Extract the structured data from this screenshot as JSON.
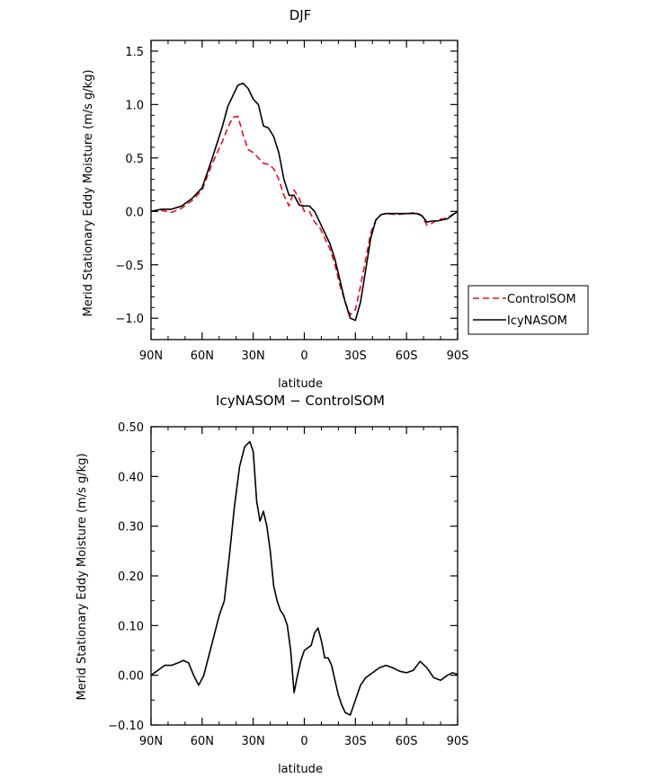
{
  "chart_data": [
    {
      "type": "line",
      "title": "DJF",
      "xlabel": "latitude",
      "ylabel": "Merid Stationary Eddy Moisture (m/s g/kg)",
      "xlim": [
        90,
        -90
      ],
      "ylim": [
        -1.2,
        1.6
      ],
      "x_ticks": [
        90,
        60,
        30,
        0,
        -30,
        -60,
        -90
      ],
      "x_tick_labels": [
        "90N",
        "60N",
        "30N",
        "0",
        "30S",
        "60S",
        "90S"
      ],
      "y_ticks": [
        -1.0,
        -0.5,
        0.0,
        0.5,
        1.0,
        1.5
      ],
      "y_tick_labels": [
        "−1.0",
        "−0.5",
        "0.0",
        "0.5",
        "1.0",
        "1.5"
      ],
      "legend": {
        "placement": "right",
        "entries": [
          "ControlSOM",
          "IcyNASOM"
        ]
      },
      "series": [
        {
          "name": "ControlSOM",
          "color": "#e8101a",
          "dash": "dashed",
          "x": [
            90,
            84,
            78,
            72,
            66,
            60,
            54,
            48,
            45,
            42,
            39,
            36,
            33,
            30,
            27,
            24,
            21,
            18,
            15,
            12,
            9,
            6,
            3,
            0,
            -3,
            -6,
            -9,
            -12,
            -15,
            -18,
            -21,
            -24,
            -27,
            -30,
            -33,
            -36,
            -39,
            -42,
            -45,
            -48,
            -54,
            -60,
            -66,
            -69,
            -72,
            -75,
            -78,
            -84,
            -90
          ],
          "y": [
            0.0,
            0.01,
            -0.01,
            0.03,
            0.1,
            0.2,
            0.45,
            0.66,
            0.78,
            0.88,
            0.89,
            0.72,
            0.58,
            0.55,
            0.5,
            0.45,
            0.44,
            0.4,
            0.3,
            0.15,
            0.05,
            0.2,
            0.12,
            0.0,
            0.0,
            -0.1,
            -0.15,
            -0.25,
            -0.35,
            -0.5,
            -0.7,
            -0.85,
            -0.97,
            -0.92,
            -0.7,
            -0.45,
            -0.2,
            -0.08,
            -0.03,
            -0.02,
            -0.03,
            -0.02,
            -0.01,
            -0.04,
            -0.13,
            -0.11,
            -0.08,
            -0.06,
            0.0
          ]
        },
        {
          "name": "IcyNASOM",
          "color": "#000000",
          "dash": "solid",
          "x": [
            90,
            84,
            78,
            72,
            66,
            60,
            54,
            48,
            45,
            42,
            39,
            36,
            33,
            30,
            27,
            24,
            21,
            18,
            15,
            12,
            9,
            6,
            3,
            0,
            -3,
            -6,
            -9,
            -12,
            -15,
            -18,
            -21,
            -24,
            -27,
            -30,
            -33,
            -36,
            -39,
            -42,
            -45,
            -48,
            -54,
            -60,
            -66,
            -69,
            -72,
            -75,
            -78,
            -84,
            -90
          ],
          "y": [
            0.0,
            0.02,
            0.02,
            0.05,
            0.12,
            0.22,
            0.5,
            0.8,
            0.98,
            1.08,
            1.18,
            1.2,
            1.15,
            1.05,
            1.0,
            0.8,
            0.78,
            0.7,
            0.55,
            0.3,
            0.15,
            0.15,
            0.06,
            0.05,
            0.05,
            0.0,
            -0.1,
            -0.2,
            -0.3,
            -0.45,
            -0.65,
            -0.85,
            -1.0,
            -1.02,
            -0.85,
            -0.55,
            -0.25,
            -0.08,
            -0.03,
            -0.02,
            -0.02,
            -0.02,
            -0.02,
            -0.04,
            -0.1,
            -0.09,
            -0.09,
            -0.07,
            0.0
          ]
        }
      ]
    },
    {
      "type": "line",
      "title": "IcyNASOM − ControlSOM",
      "xlabel": "latitude",
      "ylabel": "Merid Stationary Eddy Moisture (m/s g/kg)",
      "xlim": [
        90,
        -90
      ],
      "ylim": [
        -0.1,
        0.5
      ],
      "x_ticks": [
        90,
        60,
        30,
        0,
        -30,
        -60,
        -90
      ],
      "x_tick_labels": [
        "90N",
        "60N",
        "30N",
        "0",
        "30S",
        "60S",
        "90S"
      ],
      "y_ticks": [
        -0.1,
        0.0,
        0.1,
        0.2,
        0.3,
        0.4,
        0.5
      ],
      "y_tick_labels": [
        "−0.10",
        "0.00",
        "0.10",
        "0.20",
        "0.30",
        "0.40",
        "0.50"
      ],
      "series": [
        {
          "color": "#000000",
          "dash": "solid",
          "x": [
            90,
            86,
            82,
            78,
            74,
            71,
            68,
            65,
            62,
            59,
            56,
            53,
            50,
            47,
            44,
            41,
            38,
            35,
            32,
            30,
            28,
            26,
            24,
            22,
            20,
            18,
            16,
            14,
            12,
            10,
            8,
            6,
            4,
            2,
            0,
            -2,
            -4,
            -6,
            -8,
            -10,
            -12,
            -14,
            -16,
            -18,
            -20,
            -22,
            -24,
            -27,
            -30,
            -33,
            -36,
            -40,
            -44,
            -48,
            -52,
            -56,
            -60,
            -64,
            -68,
            -72,
            -76,
            -80,
            -84,
            -87,
            -90
          ],
          "y": [
            0.0,
            0.01,
            0.02,
            0.02,
            0.025,
            0.03,
            0.025,
            0.0,
            -0.02,
            0.0,
            0.04,
            0.08,
            0.12,
            0.15,
            0.24,
            0.34,
            0.42,
            0.46,
            0.47,
            0.45,
            0.35,
            0.31,
            0.33,
            0.3,
            0.25,
            0.18,
            0.15,
            0.13,
            0.12,
            0.1,
            0.05,
            -0.035,
            0.0,
            0.03,
            0.05,
            0.055,
            0.06,
            0.085,
            0.095,
            0.07,
            0.035,
            0.035,
            0.02,
            -0.01,
            -0.04,
            -0.06,
            -0.075,
            -0.08,
            -0.05,
            -0.02,
            -0.005,
            0.005,
            0.015,
            0.02,
            0.015,
            0.008,
            0.005,
            0.01,
            0.028,
            0.015,
            -0.005,
            -0.01,
            0.0,
            0.005,
            0.002
          ]
        }
      ]
    }
  ]
}
